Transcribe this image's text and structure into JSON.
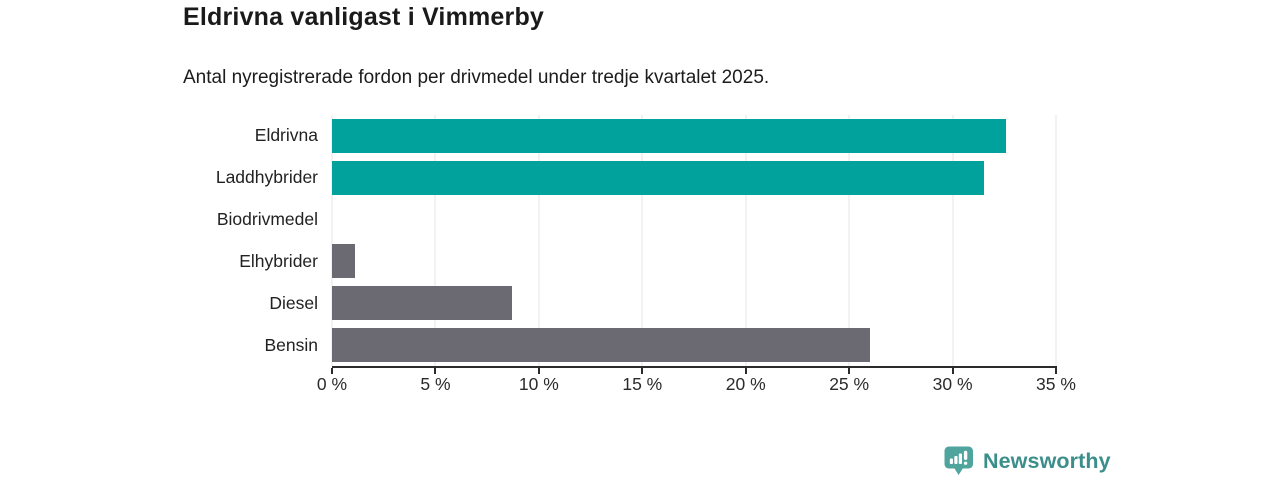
{
  "header": {
    "title": "Eldrivna vanligast i Vimmerby",
    "subtitle": "Antal nyregistrerade fordon per drivmedel under tredje kvartalet 2025."
  },
  "chart_data": {
    "type": "bar",
    "orientation": "horizontal",
    "title": "Eldrivna vanligast i Vimmerby",
    "subtitle": "Antal nyregistrerade fordon per drivmedel under tredje kvartalet 2025.",
    "categories": [
      "Eldrivna",
      "Laddhybrider",
      "Biodrivmedel",
      "Elhybrider",
      "Diesel",
      "Bensin"
    ],
    "values": [
      32.6,
      31.5,
      0,
      1.1,
      8.7,
      26.0
    ],
    "unit": "%",
    "xlabel": "",
    "ylabel": "",
    "xlim": [
      0,
      35
    ],
    "x_tick_values": [
      0,
      5,
      10,
      15,
      20,
      25,
      30,
      35
    ],
    "x_tick_labels": [
      "0 %",
      "5 %",
      "10 %",
      "15 %",
      "20 %",
      "25 %",
      "30 %",
      "35 %"
    ],
    "grid": true,
    "legend": false,
    "colors": {
      "highlight": "#00a29b",
      "default": "#6b6a72",
      "gridline": "#e4e4e4",
      "axis": "#2b2b2b"
    },
    "bar_colors": [
      "#00a29b",
      "#00a29b",
      "#6b6a72",
      "#6b6a72",
      "#6b6a72",
      "#6b6a72"
    ]
  },
  "footer": {
    "brand": "Newsworthy",
    "brand_color": "#3b8e8a",
    "logo_icon": "bar-chart-speech-bubble-icon"
  }
}
